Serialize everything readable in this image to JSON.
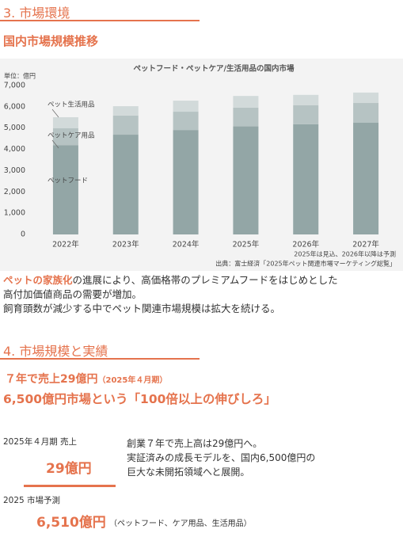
{
  "section3": {
    "heading": "3. 市場環境",
    "subheading": "国内市場規模推移",
    "paragraph": {
      "highlight": "ペットの家族化",
      "text1": "の進展により、高価格帯のプレミアムフードをはじめとした",
      "text2": "高付加価値商品の需要が増加。",
      "text3": "飼育頭数が減少する中でペット関連市場規模は拡大を続ける。"
    }
  },
  "chart_data": {
    "type": "stacked_bar",
    "title": "ペットフード・ペットケア/生活用品の国内市場",
    "unit": "単位：億円",
    "categories": [
      "2022年",
      "2023年",
      "2024年",
      "2025年",
      "2026年",
      "2027年"
    ],
    "series": [
      {
        "name": "ペットフード",
        "color": "#93a6a6",
        "values": [
          4200,
          4690,
          4910,
          5080,
          5180,
          5250
        ]
      },
      {
        "name": "ペットケア用品",
        "color": "#b6c3c3",
        "values": [
          790,
          900,
          860,
          880,
          890,
          930
        ]
      },
      {
        "name": "ペット生活用品",
        "color": "#d2dada",
        "values": [
          520,
          440,
          520,
          550,
          490,
          490
        ]
      }
    ],
    "ylim": [
      0,
      7000
    ],
    "yticks": [
      0,
      {
        "value": 1000,
        "label": "1,000"
      },
      {
        "value": 2000,
        "label": "2,000"
      },
      {
        "value": 3000,
        "label": "3,000"
      },
      {
        "value": 4000,
        "label": "4,000"
      },
      {
        "value": 5000,
        "label": "5,000"
      },
      {
        "value": 6000,
        "label": "6,000"
      },
      {
        "value": 7000,
        "label": "7,000"
      }
    ],
    "grid": false,
    "notes": [
      "2025年は見込、2026年以降は予測",
      "出典：富士経済「2025年ペット関連市場マーケティング総覧」"
    ]
  },
  "section4": {
    "heading": "4. 市場規模と実績",
    "headline1": "７年で売上29億円",
    "headline1_note": "（2025年４月期）",
    "headline2": "6,500億円市場という「100倍以上の伸びしろ」",
    "stat1": {
      "label": "2025年４月期 売上",
      "value": "29億円"
    },
    "stat2": {
      "label": "2025 市場予測",
      "value": "6,510億円",
      "note": "（ペットフード、ケア用品、生活用品）"
    },
    "description": [
      "創業７年で売上高は29億円へ。",
      "実証済みの成長モデルを、国内6,500億円の",
      "巨大な未開拓領域へと展開。"
    ]
  }
}
